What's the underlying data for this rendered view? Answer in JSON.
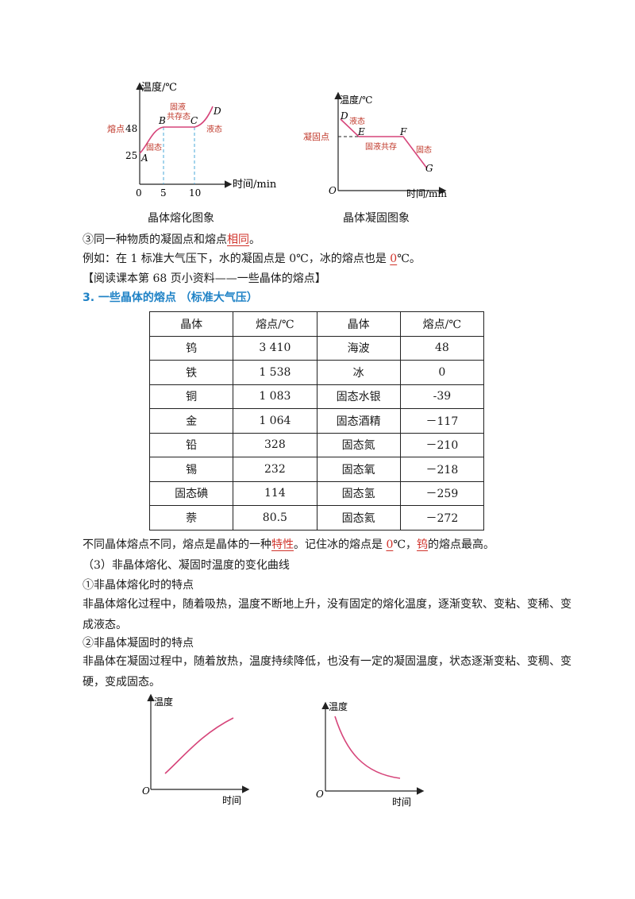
{
  "fig_melting": {
    "ylabel": "温度/℃",
    "xlabel": "时间/min",
    "yticks": [
      "48",
      "25"
    ],
    "xticks": [
      "0",
      "5",
      "10"
    ],
    "points": [
      "A",
      "B",
      "C",
      "D"
    ],
    "melting_point": "熔点",
    "region_solid": "固态",
    "region_mix_line1": "固液",
    "region_mix_line2": "共存态",
    "region_liquid": "液态",
    "caption": "晶体熔化图象"
  },
  "fig_solidify": {
    "ylabel": "温度/℃",
    "xlabel": "时间/min",
    "origin": "O",
    "points": [
      "D",
      "E",
      "F",
      "G"
    ],
    "freezing_point": "凝固点",
    "region_liquid": "液态",
    "region_mix": "固液共存",
    "region_solid": "固态",
    "caption": "晶体凝固图象"
  },
  "text": {
    "line1_pre": "③同一种物质的凝固点和熔点",
    "line1_ans": "相同",
    "line1_post": "。",
    "line2_pre": "例如：在 1 标准大气压下，水的凝固点是 0℃，冰的熔点也是 ",
    "line2_ans": "0",
    "line2_post": "℃。",
    "line3": "【阅读课本第 68 页小资料——一些晶体的熔点】",
    "section3": "3. 一些晶体的熔点 （标准大气压）"
  },
  "table": {
    "headers": [
      "晶体",
      "熔点/℃",
      "晶体",
      "熔点/℃"
    ],
    "rows": [
      [
        "钨",
        "3 410",
        "海波",
        "48"
      ],
      [
        "铁",
        "1 538",
        "冰",
        "0"
      ],
      [
        "铜",
        "1 083",
        "固态水银",
        "-39"
      ],
      [
        "金",
        "1 064",
        "固态酒精",
        "－117"
      ],
      [
        "铅",
        "328",
        "固态氮",
        "－210"
      ],
      [
        "锡",
        "232",
        "固态氧",
        "－218"
      ],
      [
        "固态碘",
        "114",
        "固态氢",
        "－259"
      ],
      [
        "萘",
        "80.5",
        "固态氦",
        "－272"
      ]
    ]
  },
  "after_table": {
    "p1_a": "不同晶体熔点不同，熔点是晶体的一种",
    "p1_ans1": "特性",
    "p1_b": "。记住冰的熔点是 ",
    "p1_ans2": "0",
    "p1_c": "℃，",
    "p1_ans3": "钨",
    "p1_d": "的熔点最高。",
    "p2": "（3）非晶体熔化、凝固时温度的变化曲线",
    "p3": "①非晶体熔化时的特点",
    "p4": "非晶体熔化过程中，随着吸热，温度不断地上升，没有固定的熔化温度，逐渐变软、变粘、变稀、变成液态。",
    "p5": "②非晶体凝固时的特点",
    "p6": "非晶体在凝固过程中，随着放热，温度持续降低，也没有一定的凝固温度，状态逐渐变粘、变稠、变硬，变成固态。"
  },
  "fig_amorphous_melt": {
    "ylabel": "温度",
    "xlabel": "时间",
    "origin": "O"
  },
  "fig_amorphous_solid": {
    "ylabel": "温度",
    "xlabel": "时间",
    "origin": "O"
  },
  "colors": {
    "curve": "#d6457a",
    "answer": "#d0332b",
    "dash": "#49a8d8",
    "section": "#1f82c6",
    "annotation": "#c0392b"
  }
}
